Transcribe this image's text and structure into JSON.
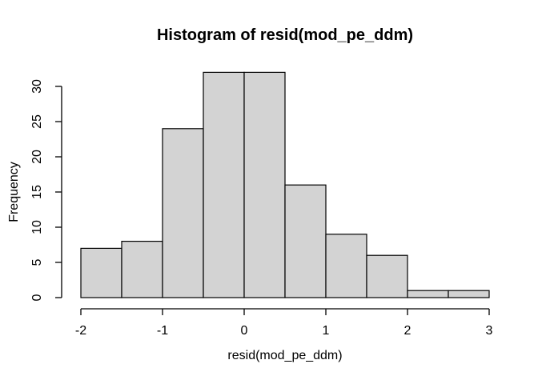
{
  "chart_data": {
    "type": "bar",
    "subtype": "histogram",
    "title": "Histogram of resid(mod_pe_ddm)",
    "xlabel": "resid(mod_pe_ddm)",
    "ylabel": "Frequency",
    "bin_edges": [
      -2,
      -1.5,
      -1,
      -0.5,
      0,
      0.5,
      1,
      1.5,
      2,
      2.5,
      3
    ],
    "counts": [
      7,
      8,
      24,
      32,
      32,
      16,
      9,
      6,
      1,
      1
    ],
    "x_ticks": [
      -2,
      -1,
      0,
      1,
      2,
      3
    ],
    "x_tick_labels": [
      "-2",
      "-1",
      "0",
      "1",
      "2",
      "3"
    ],
    "y_ticks": [
      0,
      5,
      10,
      15,
      20,
      25,
      30
    ],
    "y_tick_labels": [
      "0",
      "5",
      "10",
      "15",
      "20",
      "25",
      "30"
    ],
    "xlim": [
      -2,
      3
    ],
    "ylim": [
      0,
      32
    ],
    "grid": false,
    "legend": null,
    "colors": {
      "background": "#ffffff",
      "bar_fill": "#d3d3d3",
      "bar_stroke": "#000000",
      "axis": "#000000",
      "text": "#000000"
    }
  }
}
